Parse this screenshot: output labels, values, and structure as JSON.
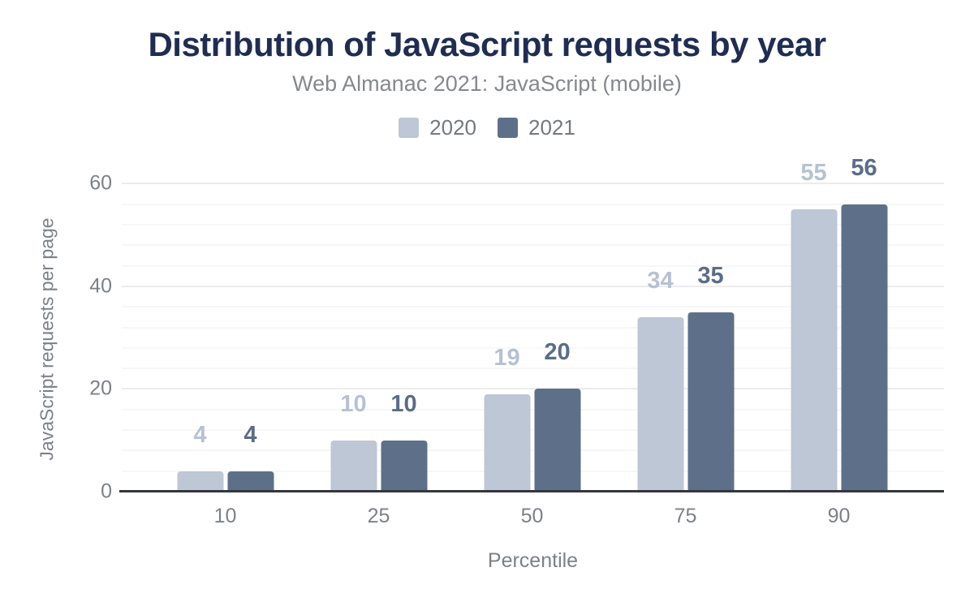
{
  "title": "Distribution of JavaScript requests by year",
  "subtitle": "Web Almanac 2021: JavaScript (mobile)",
  "legend": {
    "items": [
      {
        "label": "2020",
        "color": "#bdc7d5"
      },
      {
        "label": "2021",
        "color": "#5e7089"
      }
    ]
  },
  "colors": {
    "title": "#1f2d52",
    "subtitle": "#85898e",
    "axis_text": "#7c8187",
    "axis_line": "#34363d",
    "grid_major": "#ececee",
    "grid_minor": "#f6f7f8",
    "series_2020_bar": "#bdc7d5",
    "series_2020_label": "#b6c1d2",
    "series_2021_bar": "#5e7089",
    "series_2021_label": "#5a6c89"
  },
  "chart_data": {
    "type": "bar",
    "title": "Distribution of JavaScript requests by year",
    "subtitle": "Web Almanac 2021: JavaScript (mobile)",
    "categories": [
      "10",
      "25",
      "50",
      "75",
      "90"
    ],
    "series": [
      {
        "name": "2020",
        "values": [
          4,
          10,
          19,
          34,
          55
        ],
        "bar_color": "#bdc7d5",
        "label_color": "#b6c1d2"
      },
      {
        "name": "2021",
        "values": [
          4,
          10,
          20,
          35,
          56
        ],
        "bar_color": "#5e7089",
        "label_color": "#5a6c89"
      }
    ],
    "xlabel": "Percentile",
    "ylabel": "JavaScript requests per page",
    "yticks": [
      0,
      20,
      40,
      60
    ],
    "ylim": [
      0,
      63.4
    ],
    "grid": "horizontal; major every 20, minor every 4",
    "legend_position": "top center",
    "data_labels": "above bars, colored per series"
  }
}
